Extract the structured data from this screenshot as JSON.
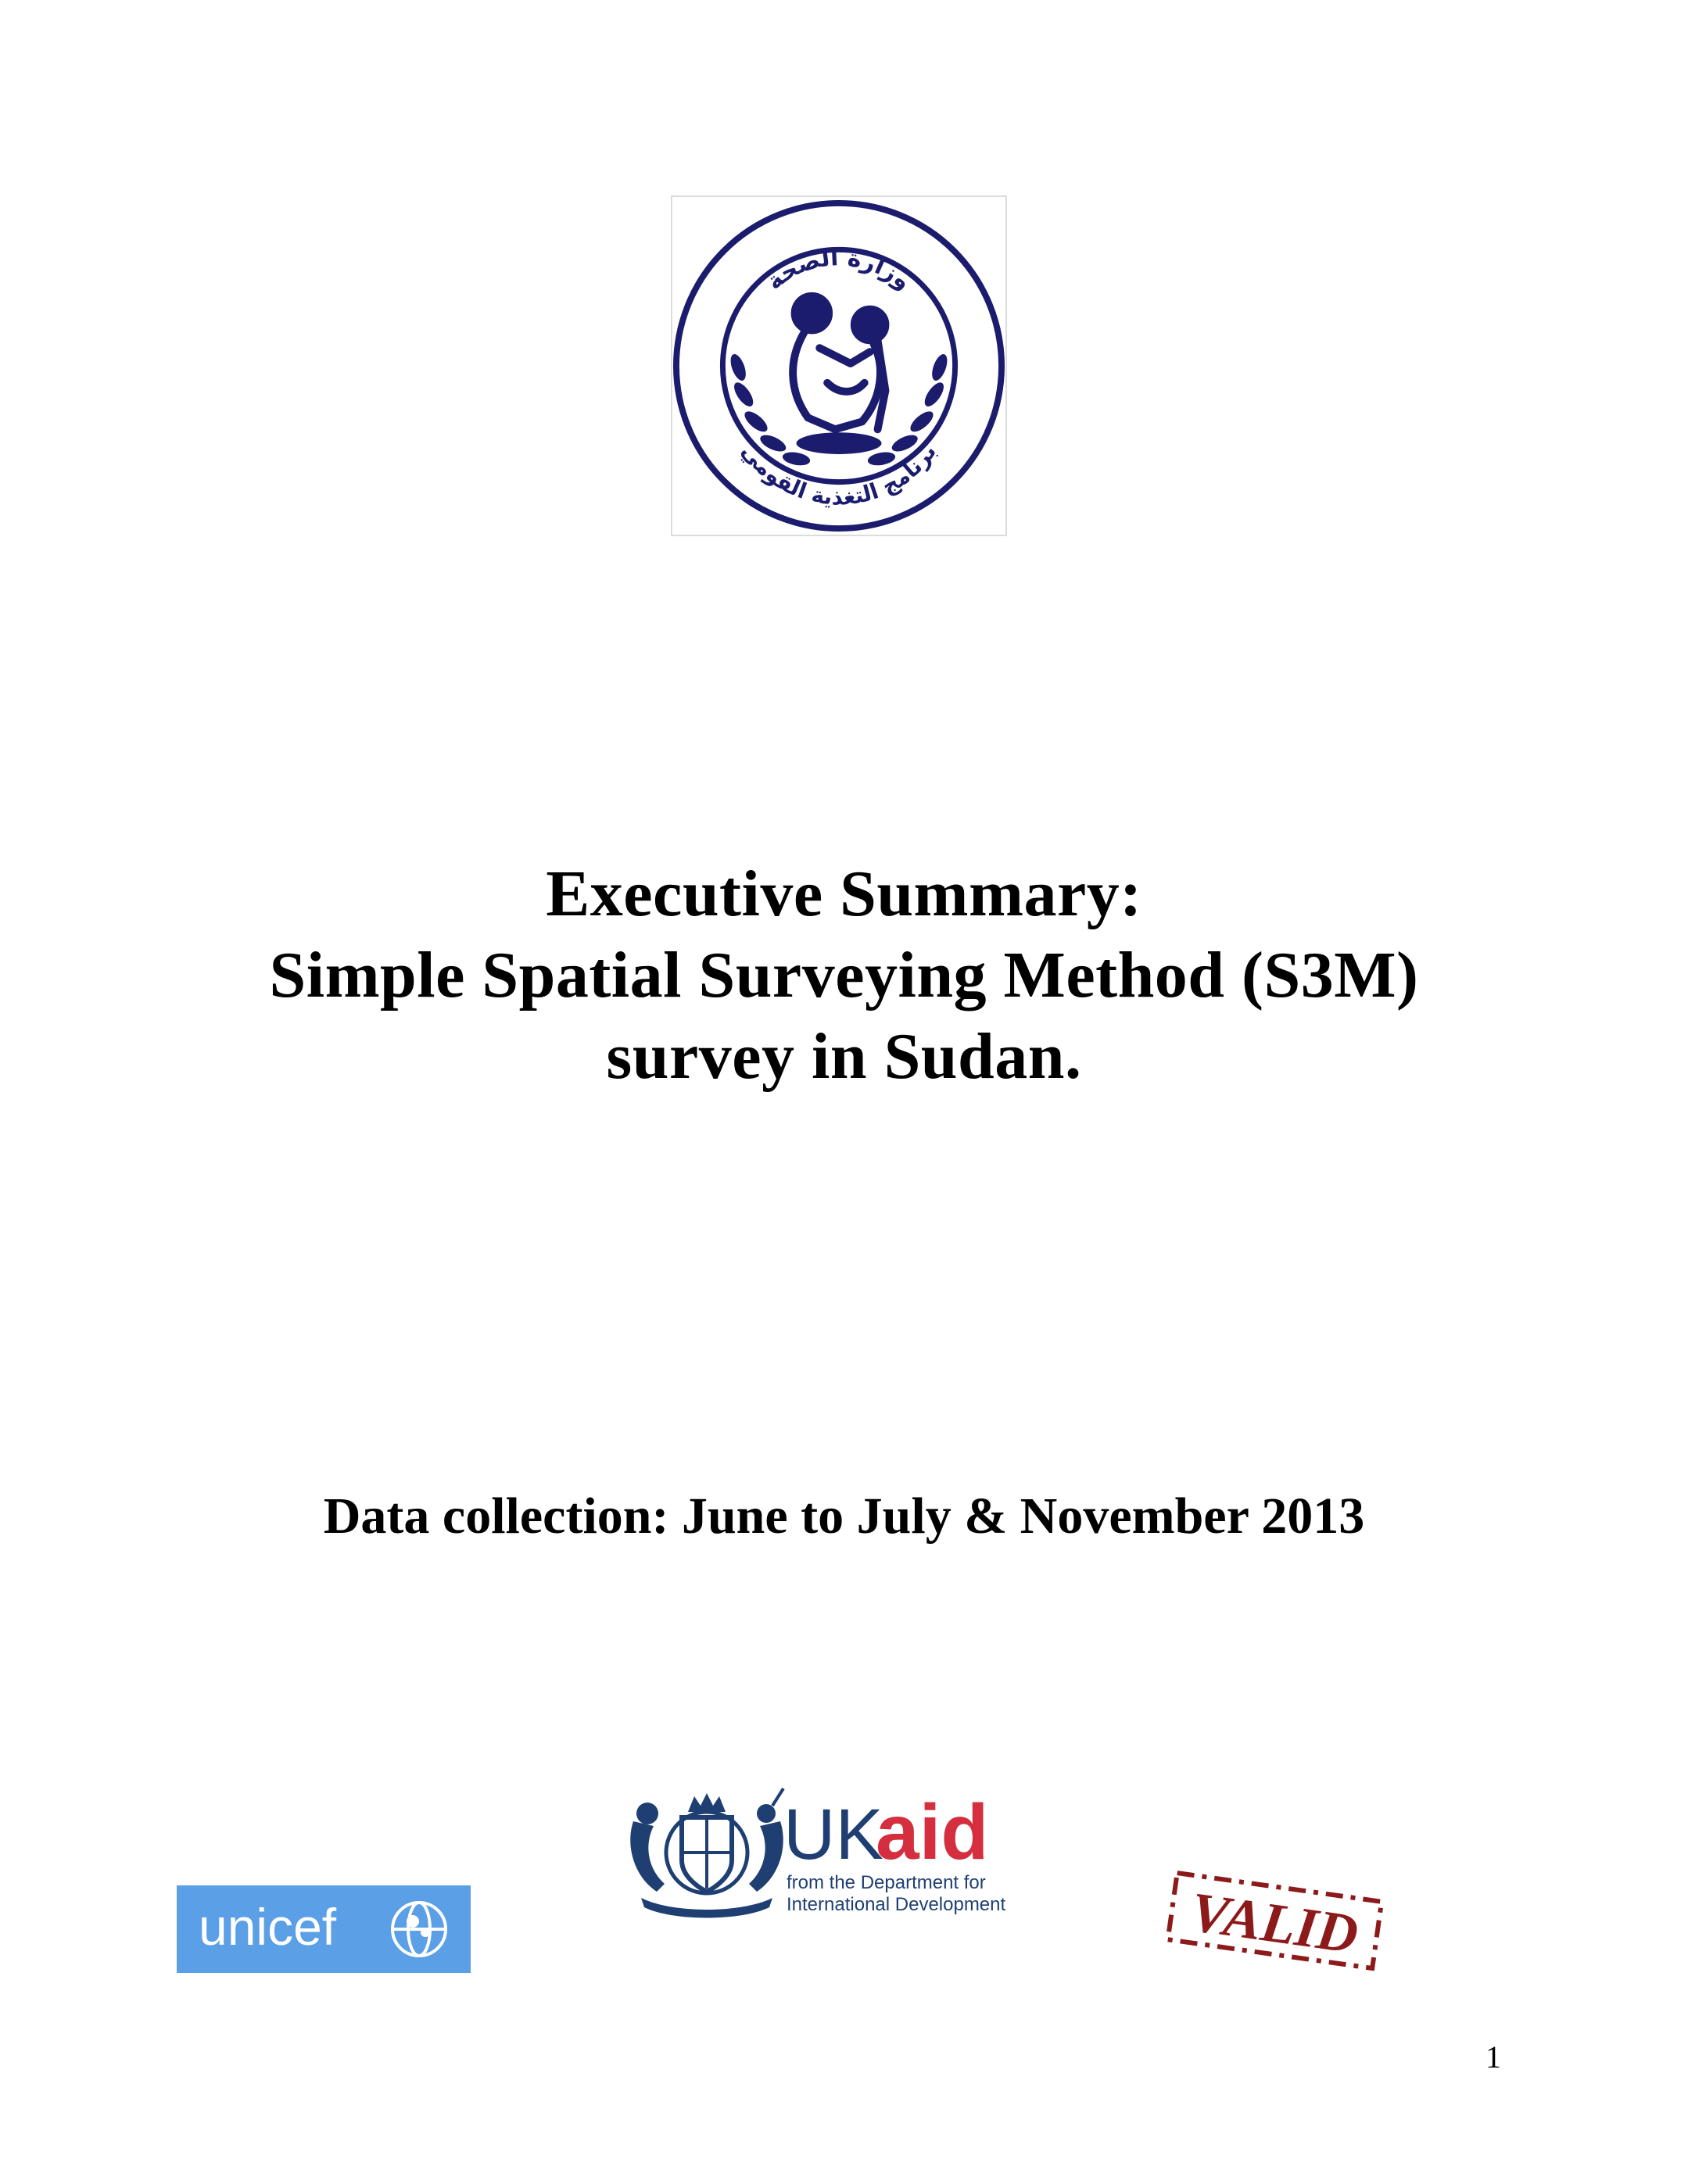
{
  "logos": {
    "ministry": {
      "arabic_top": "وزارة الصحة",
      "arabic_bottom": "برنامج التغذية القومي",
      "color": "#1c1c6e"
    },
    "unicef": {
      "wordmark": "unicef",
      "color": "#5b9fe6"
    },
    "ukaid": {
      "uk": "UK",
      "aid": "aid",
      "tagline_line1": "from the Department for",
      "tagline_line2": "International Development",
      "uk_color": "#1f3f73",
      "aid_color": "#d42e3f"
    },
    "valid": {
      "wordmark": "VALID",
      "color": "#8c1a1a"
    }
  },
  "title": {
    "line1": "Executive Summary:",
    "line2": "Simple Spatial Surveying Method (S3M)",
    "line3": "survey in Sudan."
  },
  "data_collection": "Data collection: June to July & November 2013",
  "page_number": "1"
}
